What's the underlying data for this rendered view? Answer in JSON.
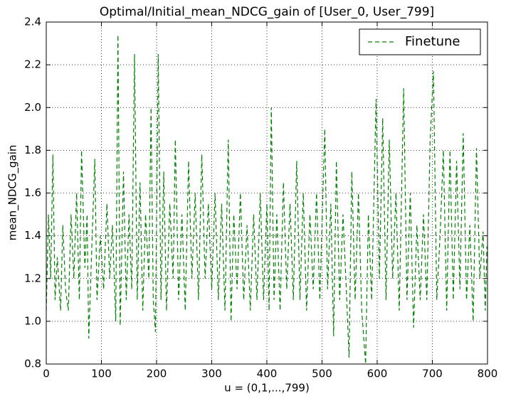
{
  "chart_data": {
    "type": "line",
    "title": "Optimal/Initial_mean_NDCG_gain of [User_0, User_799]",
    "x_label": "u = (0,1,...,799)",
    "y_label": "mean_NDCG_gain",
    "x": [
      0,
      4,
      8,
      12,
      16,
      20,
      26,
      30,
      35,
      40,
      45,
      50,
      55,
      60,
      64,
      70,
      74,
      77,
      82,
      88,
      92,
      98,
      104,
      110,
      115,
      120,
      126,
      130,
      134,
      140,
      145,
      150,
      155,
      160,
      165,
      170,
      175,
      180,
      186,
      190,
      194,
      198,
      203,
      208,
      213,
      218,
      224,
      230,
      234,
      240,
      246,
      252,
      258,
      264,
      270,
      276,
      282,
      288,
      294,
      300,
      306,
      312,
      318,
      324,
      330,
      335,
      340,
      346,
      352,
      358,
      364,
      370,
      376,
      382,
      388,
      394,
      400,
      404,
      408,
      413,
      418,
      424,
      430,
      436,
      442,
      448,
      454,
      460,
      466,
      472,
      478,
      484,
      490,
      496,
      505,
      510,
      516,
      521,
      526,
      532,
      538,
      544,
      549,
      554,
      560,
      566,
      572,
      579,
      584,
      590,
      598,
      604,
      610,
      616,
      622,
      628,
      634,
      640,
      648,
      654,
      660,
      666,
      672,
      678,
      684,
      690,
      696,
      702,
      708,
      714,
      720,
      726,
      732,
      738,
      744,
      750,
      756,
      762,
      768,
      774,
      780,
      786,
      792,
      796,
      799
    ],
    "series": [
      {
        "name": "Finetune",
        "color": "#008000",
        "values": [
          1.05,
          1.5,
          1.2,
          1.78,
          1.1,
          1.3,
          1.05,
          1.45,
          1.15,
          1.05,
          1.5,
          1.2,
          1.6,
          1.1,
          1.8,
          1.25,
          1.5,
          0.92,
          1.3,
          1.76,
          1.1,
          1.4,
          1.15,
          1.55,
          1.2,
          1.45,
          1.0,
          2.34,
          0.98,
          1.7,
          1.1,
          1.5,
          1.15,
          2.25,
          1.1,
          1.65,
          1.05,
          1.5,
          1.2,
          2.0,
          1.1,
          0.95,
          2.25,
          1.1,
          1.7,
          1.05,
          1.55,
          1.2,
          1.85,
          1.1,
          1.5,
          1.05,
          1.75,
          1.2,
          1.6,
          1.1,
          1.78,
          1.2,
          1.55,
          1.15,
          1.6,
          1.1,
          1.55,
          1.05,
          1.85,
          1.0,
          1.5,
          1.15,
          1.6,
          1.1,
          1.45,
          1.05,
          1.5,
          1.1,
          1.6,
          1.1,
          1.55,
          1.05,
          2.0,
          1.1,
          1.5,
          1.05,
          1.65,
          1.15,
          1.55,
          1.1,
          1.75,
          1.1,
          1.6,
          1.05,
          1.5,
          1.15,
          1.6,
          1.1,
          1.9,
          1.15,
          1.55,
          0.93,
          1.75,
          1.1,
          1.5,
          1.15,
          0.83,
          1.7,
          1.1,
          1.6,
          1.05,
          0.8,
          1.5,
          1.1,
          2.04,
          1.2,
          1.95,
          1.1,
          1.85,
          1.2,
          1.6,
          1.05,
          2.09,
          1.1,
          1.6,
          0.97,
          1.45,
          1.1,
          1.5,
          1.1,
          1.85,
          2.17,
          1.1,
          1.4,
          1.8,
          1.05,
          1.8,
          1.1,
          1.75,
          1.15,
          1.88,
          1.1,
          1.45,
          1.0,
          1.81,
          1.2,
          1.42,
          1.05,
          1.35
        ]
      }
    ],
    "xlim": [
      0,
      800
    ],
    "xticks": [
      0,
      100,
      200,
      300,
      400,
      500,
      600,
      700,
      800
    ],
    "ylim": [
      0.8,
      2.4
    ],
    "yticks": [
      0.8,
      {
        "value": 1.0,
        "label": "1.0"
      },
      1.2,
      1.4,
      1.6,
      1.8,
      {
        "value": 2.0,
        "label": "2.0"
      },
      2.2,
      2.4
    ],
    "grid": true,
    "legend": "upper right",
    "linestyle": "dashed"
  }
}
